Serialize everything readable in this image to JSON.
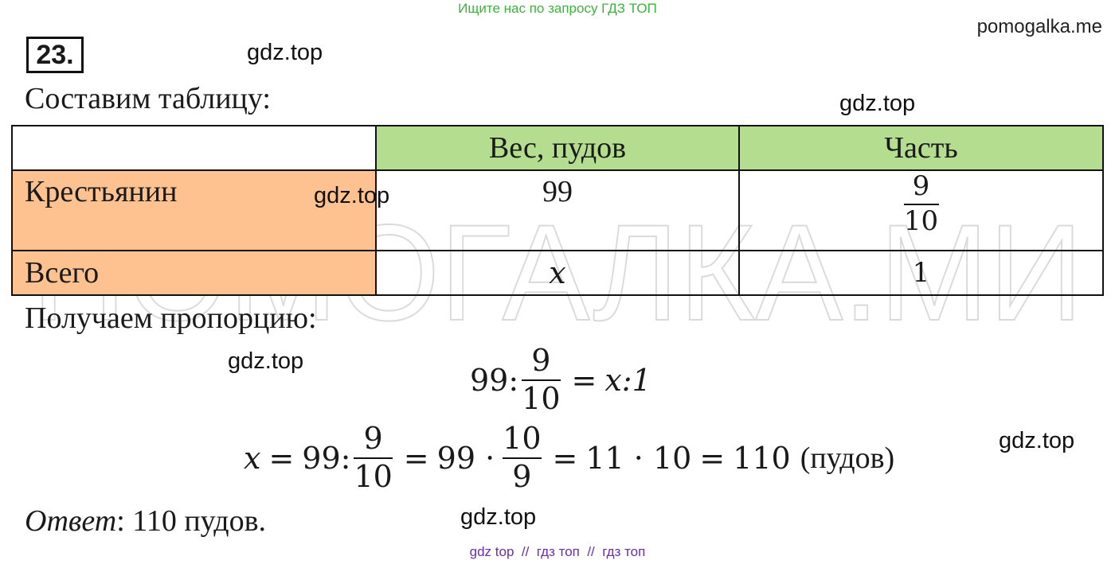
{
  "header": {
    "banner": "Ищите нас по запросу ГДЗ ТОП",
    "site": "pomogalka.me",
    "problem_number": "23."
  },
  "watermarks": [
    "gdz.top",
    "gdz.top",
    "gdz.top",
    "gdz.top",
    "gdz.top",
    "gdz.top"
  ],
  "background_watermark": "ПОМОГАЛКА.МИ",
  "intro": "Составим таблицу:",
  "table": {
    "headers": [
      "",
      "Вес, пудов",
      "Часть"
    ],
    "rows": [
      {
        "label": "Крестьянин",
        "weight": "99",
        "part_num": "9",
        "part_den": "10"
      },
      {
        "label": "Всего",
        "weight": "x",
        "part": "1"
      }
    ]
  },
  "proportion_intro": "Получаем пропорцию:",
  "equation1": {
    "left": "99:",
    "frac_num": "9",
    "frac_den": "10",
    "eq": "=",
    "right": "x:1"
  },
  "equation2": {
    "x": "x",
    "eq1": "=",
    "t1": "99:",
    "f1_num": "9",
    "f1_den": "10",
    "eq2": "=",
    "t2": "99 ·",
    "f2_num": "10",
    "f2_den": "9",
    "eq3": "=",
    "t3": "11 · 10",
    "eq4": "=",
    "t4": "110",
    "unit": "(пудов)"
  },
  "answer": {
    "label": "Ответ",
    "text": ": 110 пудов."
  },
  "footer": "gdz top  //  гдз топ  //  гдз топ"
}
